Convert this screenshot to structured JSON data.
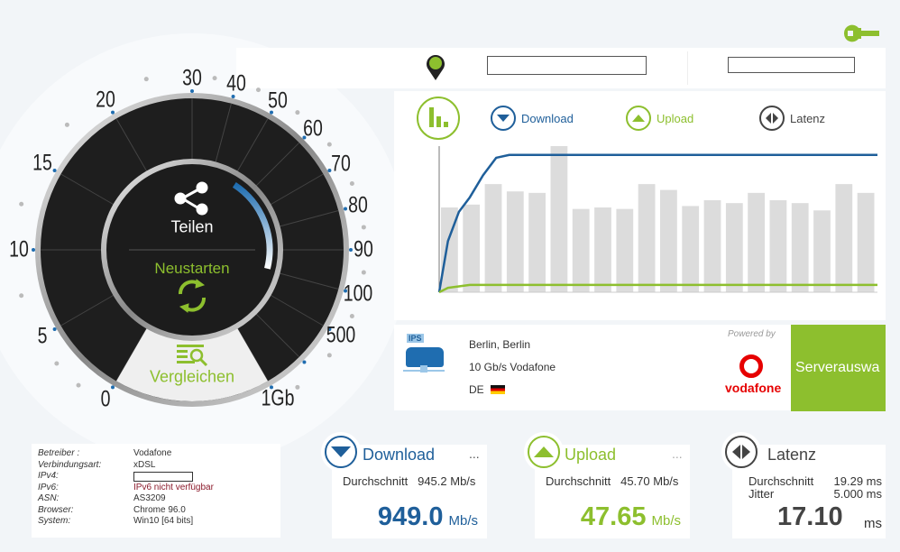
{
  "colors": {
    "download": "#1f5f9a",
    "upload": "#8dbf2e",
    "latency": "#444444",
    "accent": "#8dbf2e"
  },
  "icons": {
    "settings": "wrench-icon",
    "location": "map-pin-icon",
    "chart": "bar-chart-icon",
    "share": "share-icon",
    "restart": "refresh-icon",
    "compare": "compare-list-icon",
    "server": "server-icon",
    "flag": "germany-flag-icon"
  },
  "gauge": {
    "scale_labels": [
      "0",
      "5",
      "10",
      "15",
      "20",
      "30",
      "40",
      "50",
      "60",
      "70",
      "80",
      "90",
      "100",
      "500",
      "1Gb"
    ],
    "share_label": "Teilen",
    "restart_label": "Neustarten",
    "compare_label": "Vergleichen"
  },
  "legend": {
    "download": "Download",
    "upload": "Upload",
    "latency": "Latenz"
  },
  "chart_data": {
    "type": "bar",
    "bars_relative_percent": [
      58,
      60,
      74,
      69,
      68,
      100,
      57,
      58,
      57,
      74,
      70,
      59,
      63,
      61,
      68,
      63,
      61,
      56,
      74,
      68
    ],
    "download_line_relative_percent": [
      0,
      35,
      55,
      65,
      80,
      92,
      94,
      94,
      94,
      94,
      94,
      94,
      94,
      94,
      94,
      94,
      94,
      94,
      94,
      94,
      94
    ],
    "upload_line_relative_percent": [
      0,
      3,
      4,
      5,
      5,
      5,
      5,
      5,
      5,
      5,
      5,
      5,
      5,
      5,
      5,
      5,
      5,
      5,
      5,
      5,
      5
    ],
    "grid": false
  },
  "server": {
    "location": "Berlin, Berlin",
    "provider": "10 Gb/s Vodafone",
    "country": "DE",
    "powered_by": "Powered by",
    "brand": "vodafone",
    "select_button": "Serverauswa",
    "ips_badge": "IPS"
  },
  "connection": [
    {
      "key": "Betreiber :",
      "value": "Vodafone"
    },
    {
      "key": "Verbindungsart:",
      "value": "xDSL"
    },
    {
      "key": "IPv4:",
      "value": ""
    },
    {
      "key": "IPv6:",
      "value": "IPv6 nicht verfügbar"
    },
    {
      "key": "ASN:",
      "value": "AS3209"
    },
    {
      "key": "Browser:",
      "value": "Chrome 96.0"
    },
    {
      "key": "System:",
      "value": "Win10 [64 bits]"
    }
  ],
  "results": {
    "download": {
      "title": "Download",
      "more": "...",
      "avg_label": "Durchschnitt",
      "avg": "945.2 Mb/s",
      "value": "949.0",
      "unit": "Mb/s"
    },
    "upload": {
      "title": "Upload",
      "more": "...",
      "avg_label": "Durchschnitt",
      "avg": "45.70 Mb/s",
      "value": "47.65",
      "unit": "Mb/s"
    },
    "latency": {
      "title": "Latenz",
      "avg_label": "Durchschnitt",
      "avg": "19.29 ms",
      "jitter_label": "Jitter",
      "jitter": "5.000 ms",
      "value": "17.10",
      "unit": "ms"
    }
  }
}
